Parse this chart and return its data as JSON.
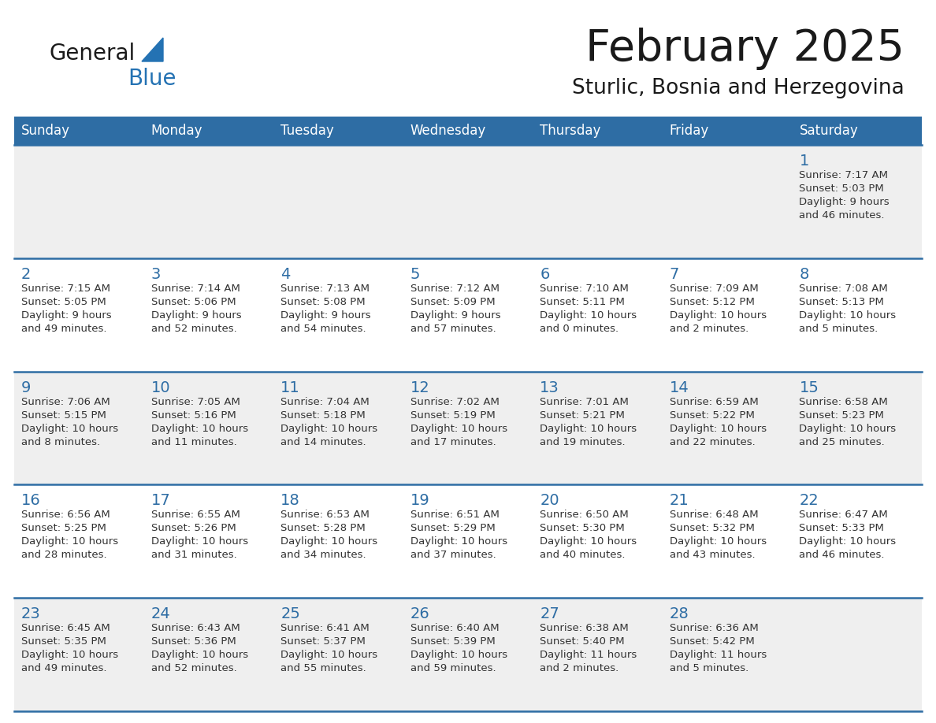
{
  "title": "February 2025",
  "subtitle": "Sturlic, Bosnia and Herzegovina",
  "header_bg_color": "#2E6DA4",
  "header_text_color": "#FFFFFF",
  "cell_bg_color_odd": "#EFEFEF",
  "cell_bg_color_even": "#FFFFFF",
  "cell_text_color": "#333333",
  "day_number_color": "#2E6DA4",
  "grid_line_color": "#2E6DA4",
  "days_of_week": [
    "Sunday",
    "Monday",
    "Tuesday",
    "Wednesday",
    "Thursday",
    "Friday",
    "Saturday"
  ],
  "logo_color1": "#1a1a1a",
  "logo_color2": "#2472B3",
  "calendar_data": [
    [
      {
        "day": "",
        "sunrise": "",
        "sunset": "",
        "daylight_line1": "",
        "daylight_line2": ""
      },
      {
        "day": "",
        "sunrise": "",
        "sunset": "",
        "daylight_line1": "",
        "daylight_line2": ""
      },
      {
        "day": "",
        "sunrise": "",
        "sunset": "",
        "daylight_line1": "",
        "daylight_line2": ""
      },
      {
        "day": "",
        "sunrise": "",
        "sunset": "",
        "daylight_line1": "",
        "daylight_line2": ""
      },
      {
        "day": "",
        "sunrise": "",
        "sunset": "",
        "daylight_line1": "",
        "daylight_line2": ""
      },
      {
        "day": "",
        "sunrise": "",
        "sunset": "",
        "daylight_line1": "",
        "daylight_line2": ""
      },
      {
        "day": "1",
        "sunrise": "Sunrise: 7:17 AM",
        "sunset": "Sunset: 5:03 PM",
        "daylight_line1": "Daylight: 9 hours",
        "daylight_line2": "and 46 minutes."
      }
    ],
    [
      {
        "day": "2",
        "sunrise": "Sunrise: 7:15 AM",
        "sunset": "Sunset: 5:05 PM",
        "daylight_line1": "Daylight: 9 hours",
        "daylight_line2": "and 49 minutes."
      },
      {
        "day": "3",
        "sunrise": "Sunrise: 7:14 AM",
        "sunset": "Sunset: 5:06 PM",
        "daylight_line1": "Daylight: 9 hours",
        "daylight_line2": "and 52 minutes."
      },
      {
        "day": "4",
        "sunrise": "Sunrise: 7:13 AM",
        "sunset": "Sunset: 5:08 PM",
        "daylight_line1": "Daylight: 9 hours",
        "daylight_line2": "and 54 minutes."
      },
      {
        "day": "5",
        "sunrise": "Sunrise: 7:12 AM",
        "sunset": "Sunset: 5:09 PM",
        "daylight_line1": "Daylight: 9 hours",
        "daylight_line2": "and 57 minutes."
      },
      {
        "day": "6",
        "sunrise": "Sunrise: 7:10 AM",
        "sunset": "Sunset: 5:11 PM",
        "daylight_line1": "Daylight: 10 hours",
        "daylight_line2": "and 0 minutes."
      },
      {
        "day": "7",
        "sunrise": "Sunrise: 7:09 AM",
        "sunset": "Sunset: 5:12 PM",
        "daylight_line1": "Daylight: 10 hours",
        "daylight_line2": "and 2 minutes."
      },
      {
        "day": "8",
        "sunrise": "Sunrise: 7:08 AM",
        "sunset": "Sunset: 5:13 PM",
        "daylight_line1": "Daylight: 10 hours",
        "daylight_line2": "and 5 minutes."
      }
    ],
    [
      {
        "day": "9",
        "sunrise": "Sunrise: 7:06 AM",
        "sunset": "Sunset: 5:15 PM",
        "daylight_line1": "Daylight: 10 hours",
        "daylight_line2": "and 8 minutes."
      },
      {
        "day": "10",
        "sunrise": "Sunrise: 7:05 AM",
        "sunset": "Sunset: 5:16 PM",
        "daylight_line1": "Daylight: 10 hours",
        "daylight_line2": "and 11 minutes."
      },
      {
        "day": "11",
        "sunrise": "Sunrise: 7:04 AM",
        "sunset": "Sunset: 5:18 PM",
        "daylight_line1": "Daylight: 10 hours",
        "daylight_line2": "and 14 minutes."
      },
      {
        "day": "12",
        "sunrise": "Sunrise: 7:02 AM",
        "sunset": "Sunset: 5:19 PM",
        "daylight_line1": "Daylight: 10 hours",
        "daylight_line2": "and 17 minutes."
      },
      {
        "day": "13",
        "sunrise": "Sunrise: 7:01 AM",
        "sunset": "Sunset: 5:21 PM",
        "daylight_line1": "Daylight: 10 hours",
        "daylight_line2": "and 19 minutes."
      },
      {
        "day": "14",
        "sunrise": "Sunrise: 6:59 AM",
        "sunset": "Sunset: 5:22 PM",
        "daylight_line1": "Daylight: 10 hours",
        "daylight_line2": "and 22 minutes."
      },
      {
        "day": "15",
        "sunrise": "Sunrise: 6:58 AM",
        "sunset": "Sunset: 5:23 PM",
        "daylight_line1": "Daylight: 10 hours",
        "daylight_line2": "and 25 minutes."
      }
    ],
    [
      {
        "day": "16",
        "sunrise": "Sunrise: 6:56 AM",
        "sunset": "Sunset: 5:25 PM",
        "daylight_line1": "Daylight: 10 hours",
        "daylight_line2": "and 28 minutes."
      },
      {
        "day": "17",
        "sunrise": "Sunrise: 6:55 AM",
        "sunset": "Sunset: 5:26 PM",
        "daylight_line1": "Daylight: 10 hours",
        "daylight_line2": "and 31 minutes."
      },
      {
        "day": "18",
        "sunrise": "Sunrise: 6:53 AM",
        "sunset": "Sunset: 5:28 PM",
        "daylight_line1": "Daylight: 10 hours",
        "daylight_line2": "and 34 minutes."
      },
      {
        "day": "19",
        "sunrise": "Sunrise: 6:51 AM",
        "sunset": "Sunset: 5:29 PM",
        "daylight_line1": "Daylight: 10 hours",
        "daylight_line2": "and 37 minutes."
      },
      {
        "day": "20",
        "sunrise": "Sunrise: 6:50 AM",
        "sunset": "Sunset: 5:30 PM",
        "daylight_line1": "Daylight: 10 hours",
        "daylight_line2": "and 40 minutes."
      },
      {
        "day": "21",
        "sunrise": "Sunrise: 6:48 AM",
        "sunset": "Sunset: 5:32 PM",
        "daylight_line1": "Daylight: 10 hours",
        "daylight_line2": "and 43 minutes."
      },
      {
        "day": "22",
        "sunrise": "Sunrise: 6:47 AM",
        "sunset": "Sunset: 5:33 PM",
        "daylight_line1": "Daylight: 10 hours",
        "daylight_line2": "and 46 minutes."
      }
    ],
    [
      {
        "day": "23",
        "sunrise": "Sunrise: 6:45 AM",
        "sunset": "Sunset: 5:35 PM",
        "daylight_line1": "Daylight: 10 hours",
        "daylight_line2": "and 49 minutes."
      },
      {
        "day": "24",
        "sunrise": "Sunrise: 6:43 AM",
        "sunset": "Sunset: 5:36 PM",
        "daylight_line1": "Daylight: 10 hours",
        "daylight_line2": "and 52 minutes."
      },
      {
        "day": "25",
        "sunrise": "Sunrise: 6:41 AM",
        "sunset": "Sunset: 5:37 PM",
        "daylight_line1": "Daylight: 10 hours",
        "daylight_line2": "and 55 minutes."
      },
      {
        "day": "26",
        "sunrise": "Sunrise: 6:40 AM",
        "sunset": "Sunset: 5:39 PM",
        "daylight_line1": "Daylight: 10 hours",
        "daylight_line2": "and 59 minutes."
      },
      {
        "day": "27",
        "sunrise": "Sunrise: 6:38 AM",
        "sunset": "Sunset: 5:40 PM",
        "daylight_line1": "Daylight: 11 hours",
        "daylight_line2": "and 2 minutes."
      },
      {
        "day": "28",
        "sunrise": "Sunrise: 6:36 AM",
        "sunset": "Sunset: 5:42 PM",
        "daylight_line1": "Daylight: 11 hours",
        "daylight_line2": "and 5 minutes."
      },
      {
        "day": "",
        "sunrise": "",
        "sunset": "",
        "daylight_line1": "",
        "daylight_line2": ""
      }
    ]
  ]
}
